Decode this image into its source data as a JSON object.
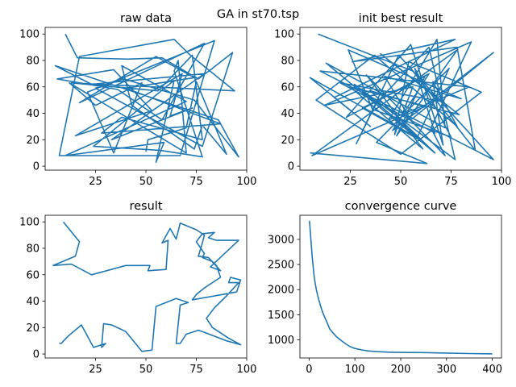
{
  "figure": {
    "suptitle": "GA in st70.tsp",
    "line_color": "#1f77b4"
  },
  "chart_data": [
    {
      "type": "line",
      "title": "raw data",
      "xlim": [
        0,
        100
      ],
      "ylim": [
        -3,
        105
      ],
      "xticks": [
        25,
        50,
        75,
        100
      ],
      "yticks": [
        0,
        20,
        40,
        60,
        80,
        100
      ],
      "x": [
        10,
        16,
        41,
        58,
        76,
        83,
        93,
        78,
        25,
        39,
        74,
        96,
        86,
        5,
        23,
        79,
        33,
        73,
        62,
        68,
        15,
        53,
        34,
        6,
        36,
        58,
        79,
        17,
        55,
        74,
        40,
        87,
        28,
        38,
        78,
        73,
        56,
        13,
        94,
        72,
        64,
        17,
        7,
        67,
        84,
        21,
        34,
        48,
        25,
        12,
        70,
        66,
        64,
        78,
        57,
        24,
        64,
        55,
        59,
        10,
        70,
        38,
        43,
        74,
        78,
        90,
        75,
        70,
        51,
        50
      ],
      "y": [
        100,
        82,
        81,
        82,
        66,
        74,
        86,
        15,
        59,
        66,
        50,
        7,
        35,
        76,
        62,
        70,
        20,
        44,
        38,
        70,
        23,
        42,
        73,
        66,
        58,
        35,
        93,
        48,
        83,
        67,
        59,
        32,
        25,
        37,
        20,
        84,
        57,
        63,
        57,
        84,
        96,
        83,
        8,
        8,
        95,
        56,
        10,
        63,
        46,
        63,
        10,
        80,
        72,
        7,
        12,
        15,
        65,
        3,
        18,
        8,
        49,
        76,
        46,
        13,
        31,
        9,
        64,
        29,
        20,
        11
      ],
      "xlabel": "",
      "ylabel": ""
    },
    {
      "type": "line",
      "title": "init best result",
      "xlim": [
        0,
        100
      ],
      "ylim": [
        -3,
        105
      ],
      "xticks": [
        25,
        50,
        75,
        100
      ],
      "yticks": [
        0,
        20,
        40,
        60,
        80,
        100
      ],
      "x": [
        9,
        56,
        87,
        78,
        26,
        77,
        17,
        35,
        5,
        60,
        27,
        77,
        64,
        38,
        28,
        49,
        96,
        10,
        84,
        44,
        68,
        72,
        13,
        67,
        35,
        62,
        6,
        78,
        48,
        62,
        23,
        55,
        71,
        66,
        78,
        37,
        8,
        50,
        90,
        54,
        47,
        56,
        12,
        85,
        65,
        72,
        33,
        61,
        25,
        79,
        40,
        70,
        20,
        67,
        57,
        75,
        36,
        24,
        80,
        42,
        55,
        96,
        46,
        64,
        31,
        58,
        74,
        38,
        63,
        5
      ],
      "y": [
        100,
        72,
        12,
        90,
        79,
        96,
        52,
        30,
        67,
        20,
        62,
        5,
        90,
        48,
        17,
        84,
        5,
        72,
        60,
        35,
        96,
        29,
        78,
        10,
        57,
        45,
        8,
        88,
        23,
        68,
        37,
        92,
        16,
        64,
        30,
        84,
        50,
        9,
        56,
        79,
        24,
        60,
        46,
        94,
        29,
        8,
        69,
        13,
        60,
        39,
        85,
        49,
        63,
        25,
        74,
        22,
        43,
        88,
        51,
        68,
        35,
        86,
        27,
        70,
        44,
        21,
        74,
        18,
        2,
        10
      ],
      "xlabel": "",
      "ylabel": ""
    },
    {
      "type": "line",
      "title": "result",
      "xlim": [
        0,
        100
      ],
      "ylim": [
        -3,
        105
      ],
      "xticks": [
        25,
        50,
        75,
        100
      ],
      "yticks": [
        0,
        20,
        40,
        60,
        80,
        100
      ],
      "x": [
        9,
        17,
        15,
        4,
        13,
        23,
        40,
        52,
        51,
        60,
        61,
        58,
        62,
        65,
        67,
        75,
        79,
        78,
        76,
        81,
        84,
        87,
        82,
        96,
        85,
        81,
        84,
        78,
        75,
        79,
        78,
        83,
        85,
        87,
        79,
        75,
        73,
        95,
        97,
        92,
        91,
        96,
        90,
        84,
        80,
        83,
        91,
        97,
        90,
        78,
        76,
        70,
        67,
        65,
        67,
        71,
        65,
        55,
        53,
        48,
        40,
        33,
        29,
        28,
        30,
        24,
        18,
        11,
        8,
        7
      ],
      "y": [
        100,
        85,
        74,
        67,
        68,
        60,
        67,
        67,
        63,
        64,
        86,
        84,
        95,
        87,
        99,
        94,
        90,
        84,
        74,
        73,
        68,
        63,
        66,
        86,
        86,
        88,
        92,
        91,
        85,
        76,
        73,
        70,
        67,
        58,
        50,
        45,
        41,
        47,
        56,
        58,
        54,
        54,
        44,
        35,
        27,
        20,
        12,
        7,
        10,
        17,
        18,
        15,
        8,
        8,
        37,
        39,
        42,
        36,
        3,
        2,
        17,
        22,
        23,
        5,
        8,
        5,
        22,
        13,
        8,
        8
      ],
      "xlabel": "",
      "ylabel": ""
    },
    {
      "type": "line",
      "title": "convergence curve",
      "xlim": [
        -20,
        420
      ],
      "ylim": [
        640,
        3480
      ],
      "xticks": [
        0,
        100,
        200,
        300,
        400
      ],
      "yticks": [
        1000,
        1500,
        2000,
        2500,
        3000
      ],
      "x": [
        1,
        3,
        5,
        7,
        9,
        11,
        13,
        16,
        19,
        22,
        26,
        30,
        35,
        40,
        45,
        52,
        60,
        70,
        80,
        90,
        100,
        115,
        130,
        150,
        175,
        200,
        250,
        300,
        350,
        400
      ],
      "y": [
        3370,
        3100,
        2870,
        2640,
        2450,
        2270,
        2140,
        1990,
        1870,
        1770,
        1650,
        1540,
        1430,
        1330,
        1220,
        1140,
        1060,
        990,
        920,
        865,
        830,
        800,
        780,
        765,
        755,
        750,
        748,
        738,
        728,
        722
      ],
      "xlabel": "",
      "ylabel": ""
    }
  ]
}
